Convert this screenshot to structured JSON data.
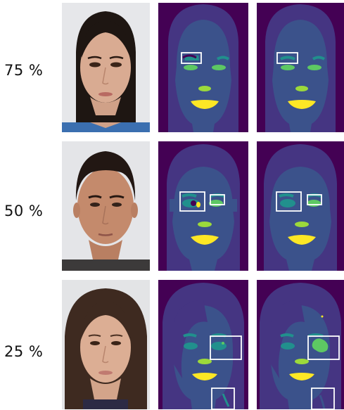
{
  "figure": {
    "rows": [
      {
        "label": "75 %"
      },
      {
        "label": "50 %"
      },
      {
        "label": "25 %"
      }
    ]
  },
  "colors": {
    "background_class": "#440154",
    "hair_class": "#453582",
    "skin_class": "#3b528b",
    "brow_class": "#21908d",
    "eye_class": "#5dc863",
    "nose_class": "#9cd93b",
    "mouth_class": "#fde725",
    "box": "#ffffff"
  }
}
